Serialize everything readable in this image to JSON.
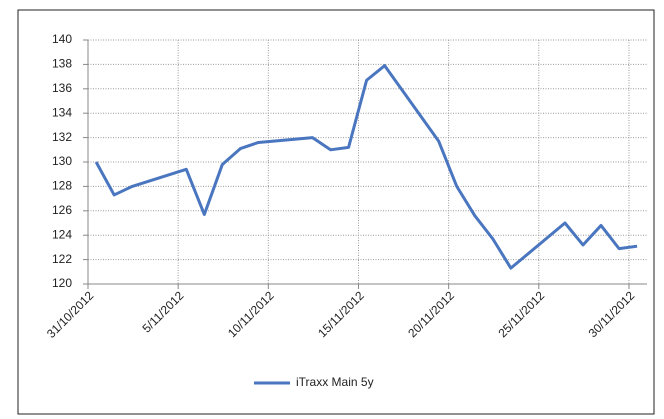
{
  "chart_data": {
    "type": "line",
    "x": [
      "31/10/2012",
      "1/11/2012",
      "2/11/2012",
      "5/11/2012",
      "6/11/2012",
      "7/11/2012",
      "8/11/2012",
      "9/11/2012",
      "12/11/2012",
      "13/11/2012",
      "14/11/2012",
      "15/11/2012",
      "16/11/2012",
      "19/11/2012",
      "20/11/2012",
      "21/11/2012",
      "22/11/2012",
      "23/11/2012",
      "26/11/2012",
      "27/11/2012",
      "28/11/2012",
      "29/11/2012",
      "30/11/2012"
    ],
    "series": [
      {
        "name": "iTraxx Main 5y",
        "color": "#4a76c0",
        "values": [
          130.0,
          127.3,
          128.0,
          129.4,
          125.7,
          129.8,
          131.1,
          131.6,
          132.0,
          131.0,
          131.2,
          136.7,
          137.9,
          131.7,
          128.0,
          125.6,
          123.7,
          121.3,
          125.0,
          123.2,
          124.8,
          122.9,
          123.1
        ]
      }
    ],
    "xticks": [
      "31/10/2012",
      "5/11/2012",
      "10/11/2012",
      "15/11/2012",
      "20/11/2012",
      "25/11/2012",
      "30/11/2012"
    ],
    "ylim": [
      120,
      140
    ],
    "yticks": [
      120,
      122,
      124,
      126,
      128,
      130,
      132,
      134,
      136,
      138,
      140
    ],
    "grid": true,
    "legend": "bottom"
  }
}
